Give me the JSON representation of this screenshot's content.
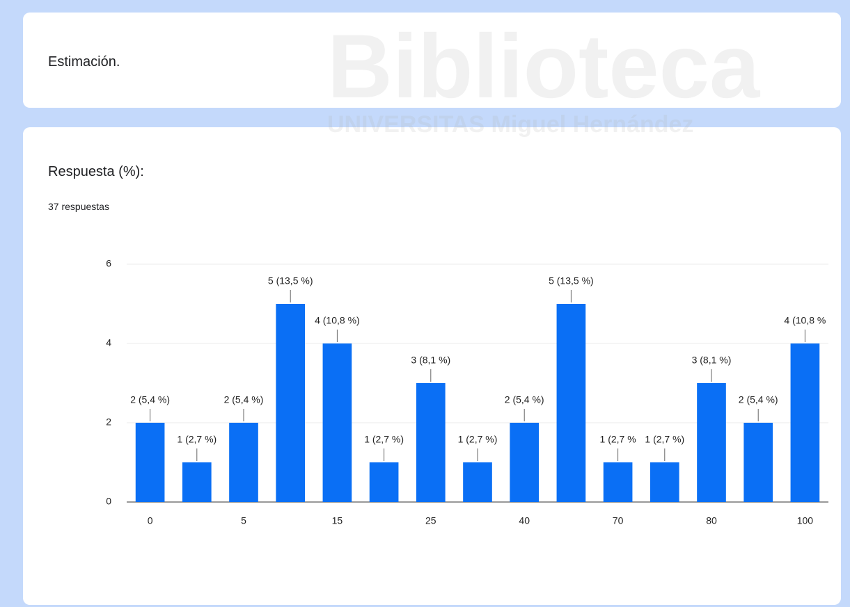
{
  "section_title": "Estimación.",
  "watermark": {
    "title": "Biblioteca",
    "subtitle": "UNIVERSITAS Miguel Hernández"
  },
  "chart_data": {
    "type": "bar",
    "title": "Respuesta (%):",
    "subtitle": "37 respuestas",
    "categories": [
      "0",
      null,
      "5",
      null,
      "15",
      null,
      "25",
      null,
      "40",
      null,
      "70",
      null,
      "80",
      null,
      "100"
    ],
    "values": [
      2,
      1,
      2,
      5,
      4,
      1,
      3,
      1,
      2,
      5,
      1,
      1,
      3,
      2,
      4
    ],
    "value_labels": [
      "2 (5,4 %)",
      "1 (2,7 %)",
      "2 (5,4 %)",
      "5 (13,5 %)",
      "4 (10,8 %)",
      "1 (2,7 %)",
      "3 (8,1 %)",
      "1 (2,7 %)",
      "2 (5,4 %)",
      "5 (13,5 %)",
      "1 (2,7 %",
      "1 (2,7 %)",
      "3 (8,1 %)",
      "2 (5,4 %)",
      "4 (10,8 %"
    ],
    "color": "#0a6ff5",
    "ylim": [
      0,
      6
    ],
    "yticks": [
      0,
      2,
      4,
      6
    ],
    "grid": true
  }
}
